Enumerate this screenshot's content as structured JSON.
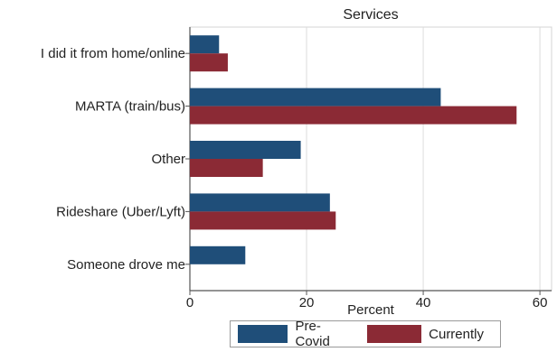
{
  "chart_data": {
    "type": "bar",
    "orientation": "horizontal",
    "title": "Services",
    "xlabel": "Percent",
    "ylabel": "",
    "categories": [
      "I did it from home/online",
      "MARTA (train/bus)",
      "Other",
      "Rideshare (Uber/Lyft)",
      "Someone drove me"
    ],
    "series": [
      {
        "name": "Pre-Covid",
        "values": [
          5,
          43,
          19,
          24,
          9.5
        ],
        "color": "#1f4e79"
      },
      {
        "name": "Currently",
        "values": [
          6.5,
          56,
          12.5,
          25,
          0
        ],
        "color": "#8b2a35"
      }
    ],
    "xlim": [
      0,
      62
    ],
    "xticks": [
      0,
      20,
      40,
      60
    ],
    "grid": true,
    "legend_position": "bottom"
  }
}
